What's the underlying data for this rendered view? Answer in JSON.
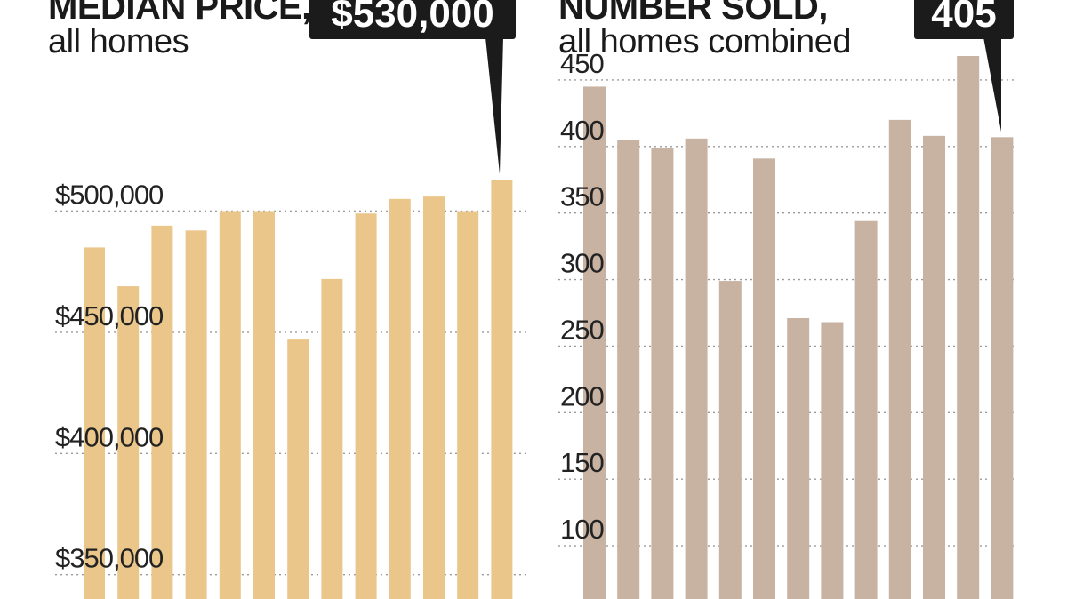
{
  "panels": {
    "price": {
      "title": "MEDIAN PRICE,",
      "subtitle": "all homes",
      "callout": "$530,000"
    },
    "sold": {
      "title": "NUMBER SOLD,",
      "subtitle": "all homes combined",
      "callout": "405"
    }
  },
  "colors": {
    "price_bar": "#ebc68a",
    "sold_bar": "#c8b2a2",
    "grid": "#9a9a9a",
    "callout_bg": "#1b1b1b",
    "axis_text": "#222222"
  },
  "chart_data": [
    {
      "type": "bar",
      "title": "MEDIAN PRICE,",
      "subtitle": "all homes",
      "yticks": [
        350000,
        400000,
        450000,
        500000
      ],
      "ytick_labels": [
        "$350,000",
        "$400,000",
        "$450,000",
        "$500,000"
      ],
      "ylim": [
        340000,
        535000
      ],
      "values": [
        485000,
        469000,
        494000,
        492000,
        500000,
        500000,
        447000,
        472000,
        499000,
        505000,
        506000,
        500000,
        513000
      ],
      "grid": true,
      "grid_style": "dotted horizontal"
    },
    {
      "type": "bar",
      "title": "NUMBER SOLD,",
      "subtitle": "all homes combined",
      "yticks": [
        100,
        150,
        200,
        250,
        300,
        350,
        400,
        450
      ],
      "ytick_labels": [
        "100",
        "150",
        "200",
        "250",
        "300",
        "350",
        "400",
        "450"
      ],
      "ylim": [
        60,
        470
      ],
      "values": [
        445,
        405,
        399,
        406,
        299,
        391,
        271,
        268,
        344,
        420,
        408,
        468,
        407
      ],
      "grid": true,
      "grid_style": "dotted horizontal"
    }
  ]
}
